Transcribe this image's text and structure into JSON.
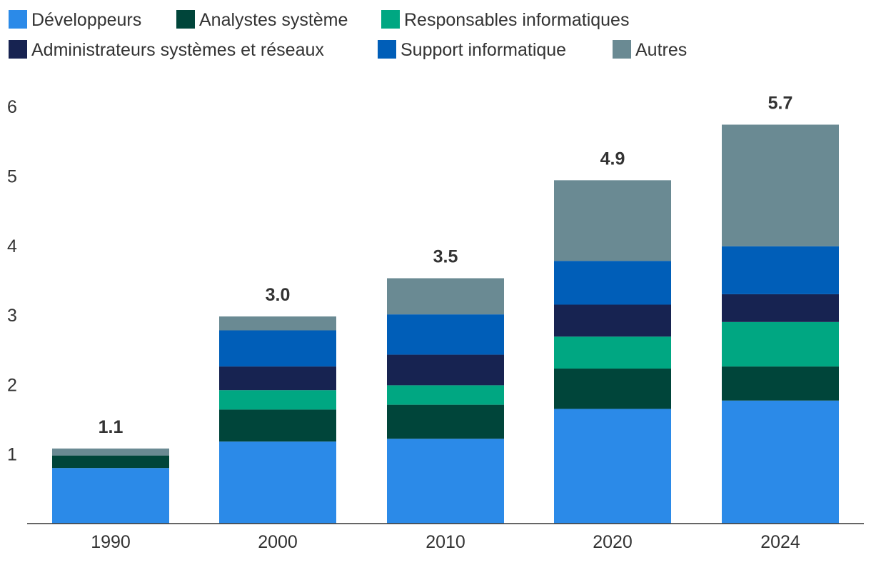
{
  "chart_data": {
    "type": "bar",
    "stacked": true,
    "categories": [
      "1990",
      "2000",
      "2010",
      "2020",
      "2024"
    ],
    "series": [
      {
        "name": "Développeurs",
        "color": "#2b8ae8",
        "values": [
          0.8,
          1.18,
          1.22,
          1.65,
          1.77
        ]
      },
      {
        "name": "Analystes système",
        "color": "#00453a",
        "values": [
          0.18,
          0.46,
          0.49,
          0.58,
          0.49
        ]
      },
      {
        "name": "Responsables informatiques",
        "color": "#00a782",
        "values": [
          0.0,
          0.28,
          0.28,
          0.46,
          0.64
        ]
      },
      {
        "name": "Administrateurs systèmes et réseaux",
        "color": "#172351",
        "values": [
          0.0,
          0.34,
          0.44,
          0.46,
          0.4
        ]
      },
      {
        "name": "Support informatique",
        "color": "#005eb8",
        "values": [
          0.0,
          0.52,
          0.58,
          0.63,
          0.69
        ]
      },
      {
        "name": "Autres",
        "color": "#6a8a93",
        "values": [
          0.1,
          0.2,
          0.52,
          1.16,
          1.75
        ]
      }
    ],
    "totals": [
      "1.1",
      "3.0",
      "3.5",
      "4.9",
      "5.7"
    ],
    "ylim": [
      0,
      6
    ],
    "yticks": [
      "1",
      "2",
      "3",
      "4",
      "5",
      "6"
    ],
    "grid": false,
    "legend_position": "top-left"
  }
}
